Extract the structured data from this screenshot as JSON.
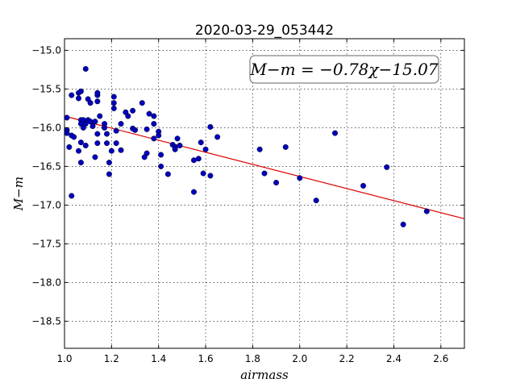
{
  "chart_data": {
    "type": "scatter",
    "title": "2020-03-29_053442",
    "xlabel": "airmass",
    "ylabel": "M−m",
    "xlim": [
      1.0,
      2.7
    ],
    "ylim": [
      -18.85,
      -14.85
    ],
    "ylim_note": "y axis inverted: -15.0 at top, -18.5 at bottom",
    "xticks": [
      1.0,
      1.2,
      1.4,
      1.6,
      1.8,
      2.0,
      2.2,
      2.4,
      2.6
    ],
    "xtick_labels": [
      "1.0",
      "1.2",
      "1.4",
      "1.6",
      "1.8",
      "2.0",
      "2.2",
      "2.4",
      "2.6"
    ],
    "yticks": [
      -15.0,
      -15.5,
      -16.0,
      -16.5,
      -17.0,
      -17.5,
      -18.0,
      -18.5
    ],
    "ytick_labels": [
      "−15.0",
      "−15.5",
      "−16.0",
      "−16.5",
      "−17.0",
      "−17.5",
      "−18.0",
      "−18.5"
    ],
    "grid": true,
    "annotation": "M−m = −0.78χ−15.07",
    "fit": {
      "slope": -0.78,
      "intercept": -15.07,
      "color": "#e00000"
    },
    "point_color": "#0000bb",
    "points": [
      [
        1.01,
        -15.87
      ],
      [
        1.01,
        -16.03
      ],
      [
        1.01,
        -16.07
      ],
      [
        1.02,
        -16.25
      ],
      [
        1.03,
        -16.88
      ],
      [
        1.03,
        -16.1
      ],
      [
        1.03,
        -15.58
      ],
      [
        1.04,
        -16.12
      ],
      [
        1.06,
        -15.55
      ],
      [
        1.06,
        -15.62
      ],
      [
        1.06,
        -16.3
      ],
      [
        1.07,
        -15.53
      ],
      [
        1.07,
        -15.9
      ],
      [
        1.07,
        -15.95
      ],
      [
        1.07,
        -16.19
      ],
      [
        1.07,
        -16.45
      ],
      [
        1.08,
        -16.0
      ],
      [
        1.08,
        -15.9
      ],
      [
        1.09,
        -15.24
      ],
      [
        1.09,
        -15.95
      ],
      [
        1.09,
        -16.23
      ],
      [
        1.1,
        -15.9
      ],
      [
        1.1,
        -15.63
      ],
      [
        1.11,
        -15.92
      ],
      [
        1.11,
        -15.68
      ],
      [
        1.12,
        -15.98
      ],
      [
        1.13,
        -15.92
      ],
      [
        1.13,
        -16.38
      ],
      [
        1.14,
        -15.66
      ],
      [
        1.14,
        -15.58
      ],
      [
        1.14,
        -15.55
      ],
      [
        1.14,
        -16.08
      ],
      [
        1.14,
        -16.2
      ],
      [
        1.15,
        -15.85
      ],
      [
        1.17,
        -15.95
      ],
      [
        1.17,
        -16.0
      ],
      [
        1.18,
        -16.08
      ],
      [
        1.18,
        -16.2
      ],
      [
        1.19,
        -16.45
      ],
      [
        1.19,
        -16.6
      ],
      [
        1.2,
        -16.3
      ],
      [
        1.21,
        -15.6
      ],
      [
        1.21,
        -15.68
      ],
      [
        1.21,
        -15.75
      ],
      [
        1.22,
        -16.04
      ],
      [
        1.22,
        -16.2
      ],
      [
        1.24,
        -15.95
      ],
      [
        1.24,
        -16.29
      ],
      [
        1.26,
        -15.8
      ],
      [
        1.27,
        -15.85
      ],
      [
        1.29,
        -16.01
      ],
      [
        1.29,
        -15.78
      ],
      [
        1.3,
        -16.03
      ],
      [
        1.33,
        -15.68
      ],
      [
        1.34,
        -16.38
      ],
      [
        1.35,
        -16.02
      ],
      [
        1.35,
        -16.33
      ],
      [
        1.36,
        -15.82
      ],
      [
        1.38,
        -15.95
      ],
      [
        1.38,
        -16.14
      ],
      [
        1.38,
        -15.85
      ],
      [
        1.4,
        -16.05
      ],
      [
        1.4,
        -16.1
      ],
      [
        1.41,
        -16.5
      ],
      [
        1.41,
        -16.35
      ],
      [
        1.44,
        -16.6
      ],
      [
        1.46,
        -16.22
      ],
      [
        1.47,
        -16.25
      ],
      [
        1.47,
        -16.28
      ],
      [
        1.48,
        -16.14
      ],
      [
        1.49,
        -16.23
      ],
      [
        1.55,
        -16.42
      ],
      [
        1.55,
        -16.83
      ],
      [
        1.57,
        -16.4
      ],
      [
        1.58,
        -16.19
      ],
      [
        1.59,
        -16.59
      ],
      [
        1.6,
        -16.28
      ],
      [
        1.62,
        -15.99
      ],
      [
        1.62,
        -16.62
      ],
      [
        1.65,
        -16.12
      ],
      [
        1.83,
        -16.28
      ],
      [
        1.85,
        -16.59
      ],
      [
        1.9,
        -16.71
      ],
      [
        1.94,
        -16.25
      ],
      [
        2.0,
        -16.65
      ],
      [
        2.07,
        -16.94
      ],
      [
        2.15,
        -16.07
      ],
      [
        2.27,
        -16.75
      ],
      [
        2.37,
        -16.51
      ],
      [
        2.44,
        -17.25
      ],
      [
        2.54,
        -17.08
      ]
    ]
  }
}
